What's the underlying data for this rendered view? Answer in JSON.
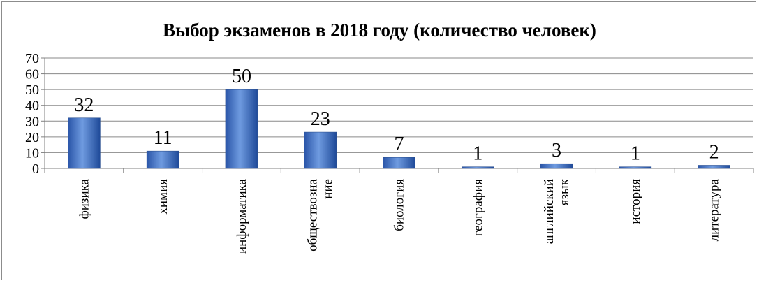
{
  "chart_data": {
    "type": "bar",
    "title": "Выбор экзаменов в 2018 году (количество человек)",
    "xlabel": "",
    "ylabel": "",
    "ylim": [
      0,
      70
    ],
    "yticks": [
      0,
      10,
      20,
      30,
      40,
      50,
      60,
      70
    ],
    "grid": true,
    "legend": "none",
    "bar_color": "#4472C4",
    "categories": [
      [
        "физика"
      ],
      [
        "химия"
      ],
      [
        "информатика"
      ],
      [
        "обществозна",
        "ние"
      ],
      [
        "биология"
      ],
      [
        "география"
      ],
      [
        "английский",
        "язык"
      ],
      [
        "история"
      ],
      [
        "литература"
      ]
    ],
    "values": [
      32,
      11,
      50,
      23,
      7,
      1,
      3,
      1,
      2
    ],
    "data_labels": [
      "32",
      "11",
      "50",
      "23",
      "7",
      "1",
      "3",
      "1",
      "2"
    ]
  }
}
